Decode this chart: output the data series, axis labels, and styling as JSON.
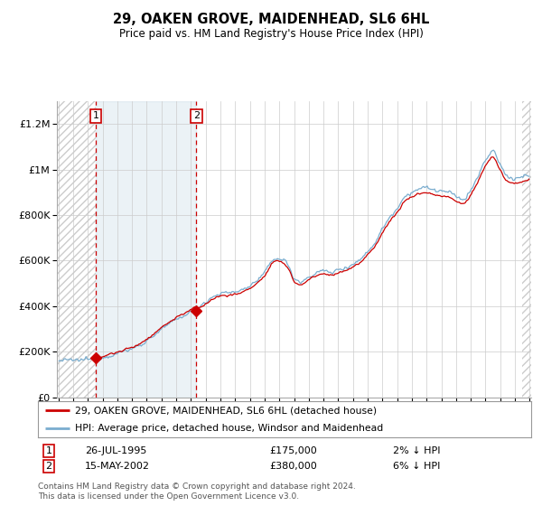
{
  "title": "29, OAKEN GROVE, MAIDENHEAD, SL6 6HL",
  "subtitle": "Price paid vs. HM Land Registry's House Price Index (HPI)",
  "legend_line1": "29, OAKEN GROVE, MAIDENHEAD, SL6 6HL (detached house)",
  "legend_line2": "HPI: Average price, detached house, Windsor and Maidenhead",
  "sale1_label": "26-JUL-1995",
  "sale1_price": 175000,
  "sale1_hpi_note": "2% ↓ HPI",
  "sale1_t": 1995.542,
  "sale2_label": "15-MAY-2002",
  "sale2_price": 380000,
  "sale2_hpi_note": "6% ↓ HPI",
  "sale2_t": 2002.375,
  "red_line_color": "#cc0000",
  "blue_line_color": "#7aadcf",
  "dashed_line_color": "#cc0000",
  "marker_color": "#cc0000",
  "grid_color": "#cccccc",
  "background_color": "#ffffff",
  "footer": "Contains HM Land Registry data © Crown copyright and database right 2024.\nThis data is licensed under the Open Government Licence v3.0.",
  "ylim": [
    0,
    1300000
  ],
  "yticks": [
    0,
    200000,
    400000,
    600000,
    800000,
    1000000,
    1200000
  ],
  "ytick_labels": [
    "£0",
    "£200K",
    "£400K",
    "£600K",
    "£800K",
    "£1M",
    "£1.2M"
  ],
  "xstart_year": 1993,
  "xend_year": 2025
}
